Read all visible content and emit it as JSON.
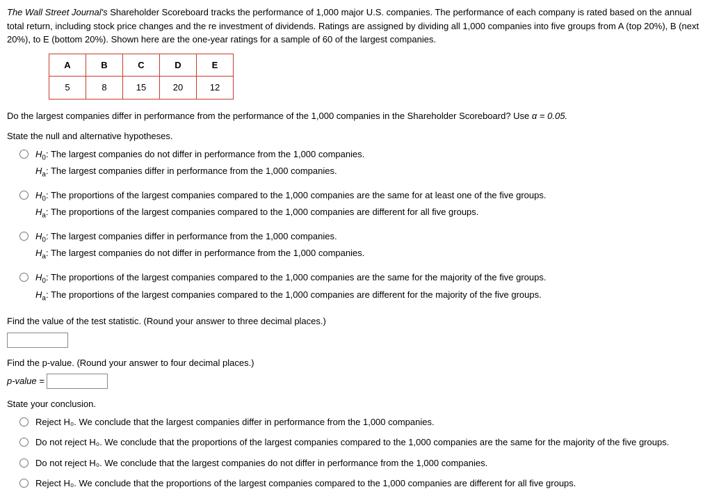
{
  "intro": {
    "journal_title": "The Wall Street Journal's",
    "rest": " Shareholder Scoreboard tracks the performance of 1,000 major U.S. companies. The performance of each company is rated based on the annual total return, including stock price changes and the re investment of dividends. Ratings are assigned by dividing all 1,000 companies into five groups from A (top 20%), B (next 20%), to E (bottom 20%). Shown here are the one-year ratings for a sample of 60 of the largest companies."
  },
  "data_table": {
    "headers": [
      "A",
      "B",
      "C",
      "D",
      "E"
    ],
    "values": [
      "5",
      "8",
      "15",
      "20",
      "12"
    ]
  },
  "question": {
    "text_a": "Do the largest companies differ in performance from the performance of the 1,000 companies in the Shareholder Scoreboard? Use ",
    "alpha": "α = 0.05.",
    "state_hyp": "State the null and alternative hypotheses."
  },
  "hyp_options": [
    {
      "h0": "The largest companies do not differ in performance from the 1,000 companies.",
      "ha": "The largest companies differ in performance from the 1,000 companies."
    },
    {
      "h0": "The proportions of the largest companies compared to the 1,000 companies are the same for at least one of the five groups.",
      "ha": "The proportions of the largest companies compared to the 1,000 companies are different for all five groups."
    },
    {
      "h0": "The largest companies differ in performance from the 1,000 companies.",
      "ha": "The largest companies do not differ in performance from the 1,000 companies."
    },
    {
      "h0": "The proportions of the largest companies compared to the 1,000 companies are the same for the majority of the five groups.",
      "ha": "The proportions of the largest companies compared to the 1,000 companies are different for the majority of the five groups."
    }
  ],
  "find_stat": "Find the value of the test statistic. (Round your answer to three decimal places.)",
  "find_pvalue": {
    "prompt": "Find the p-value. (Round your answer to four decimal places.)",
    "label": "p-value = "
  },
  "conclusion": {
    "prompt": "State your conclusion.",
    "options": [
      "Reject H₀. We conclude that the largest companies differ in performance from the 1,000 companies.",
      "Do not reject H₀. We conclude that the proportions of the largest companies compared to the 1,000 companies are the same for the majority of the five groups.",
      "Do not reject H₀. We conclude that the largest companies do not differ in performance from the 1,000 companies.",
      "Reject H₀. We conclude that the proportions of the largest companies compared to the 1,000 companies are different for all five groups."
    ]
  },
  "labels": {
    "h0": "H",
    "h0_sub": "0",
    "ha": "H",
    "ha_sub": "a",
    "colon": ": "
  }
}
